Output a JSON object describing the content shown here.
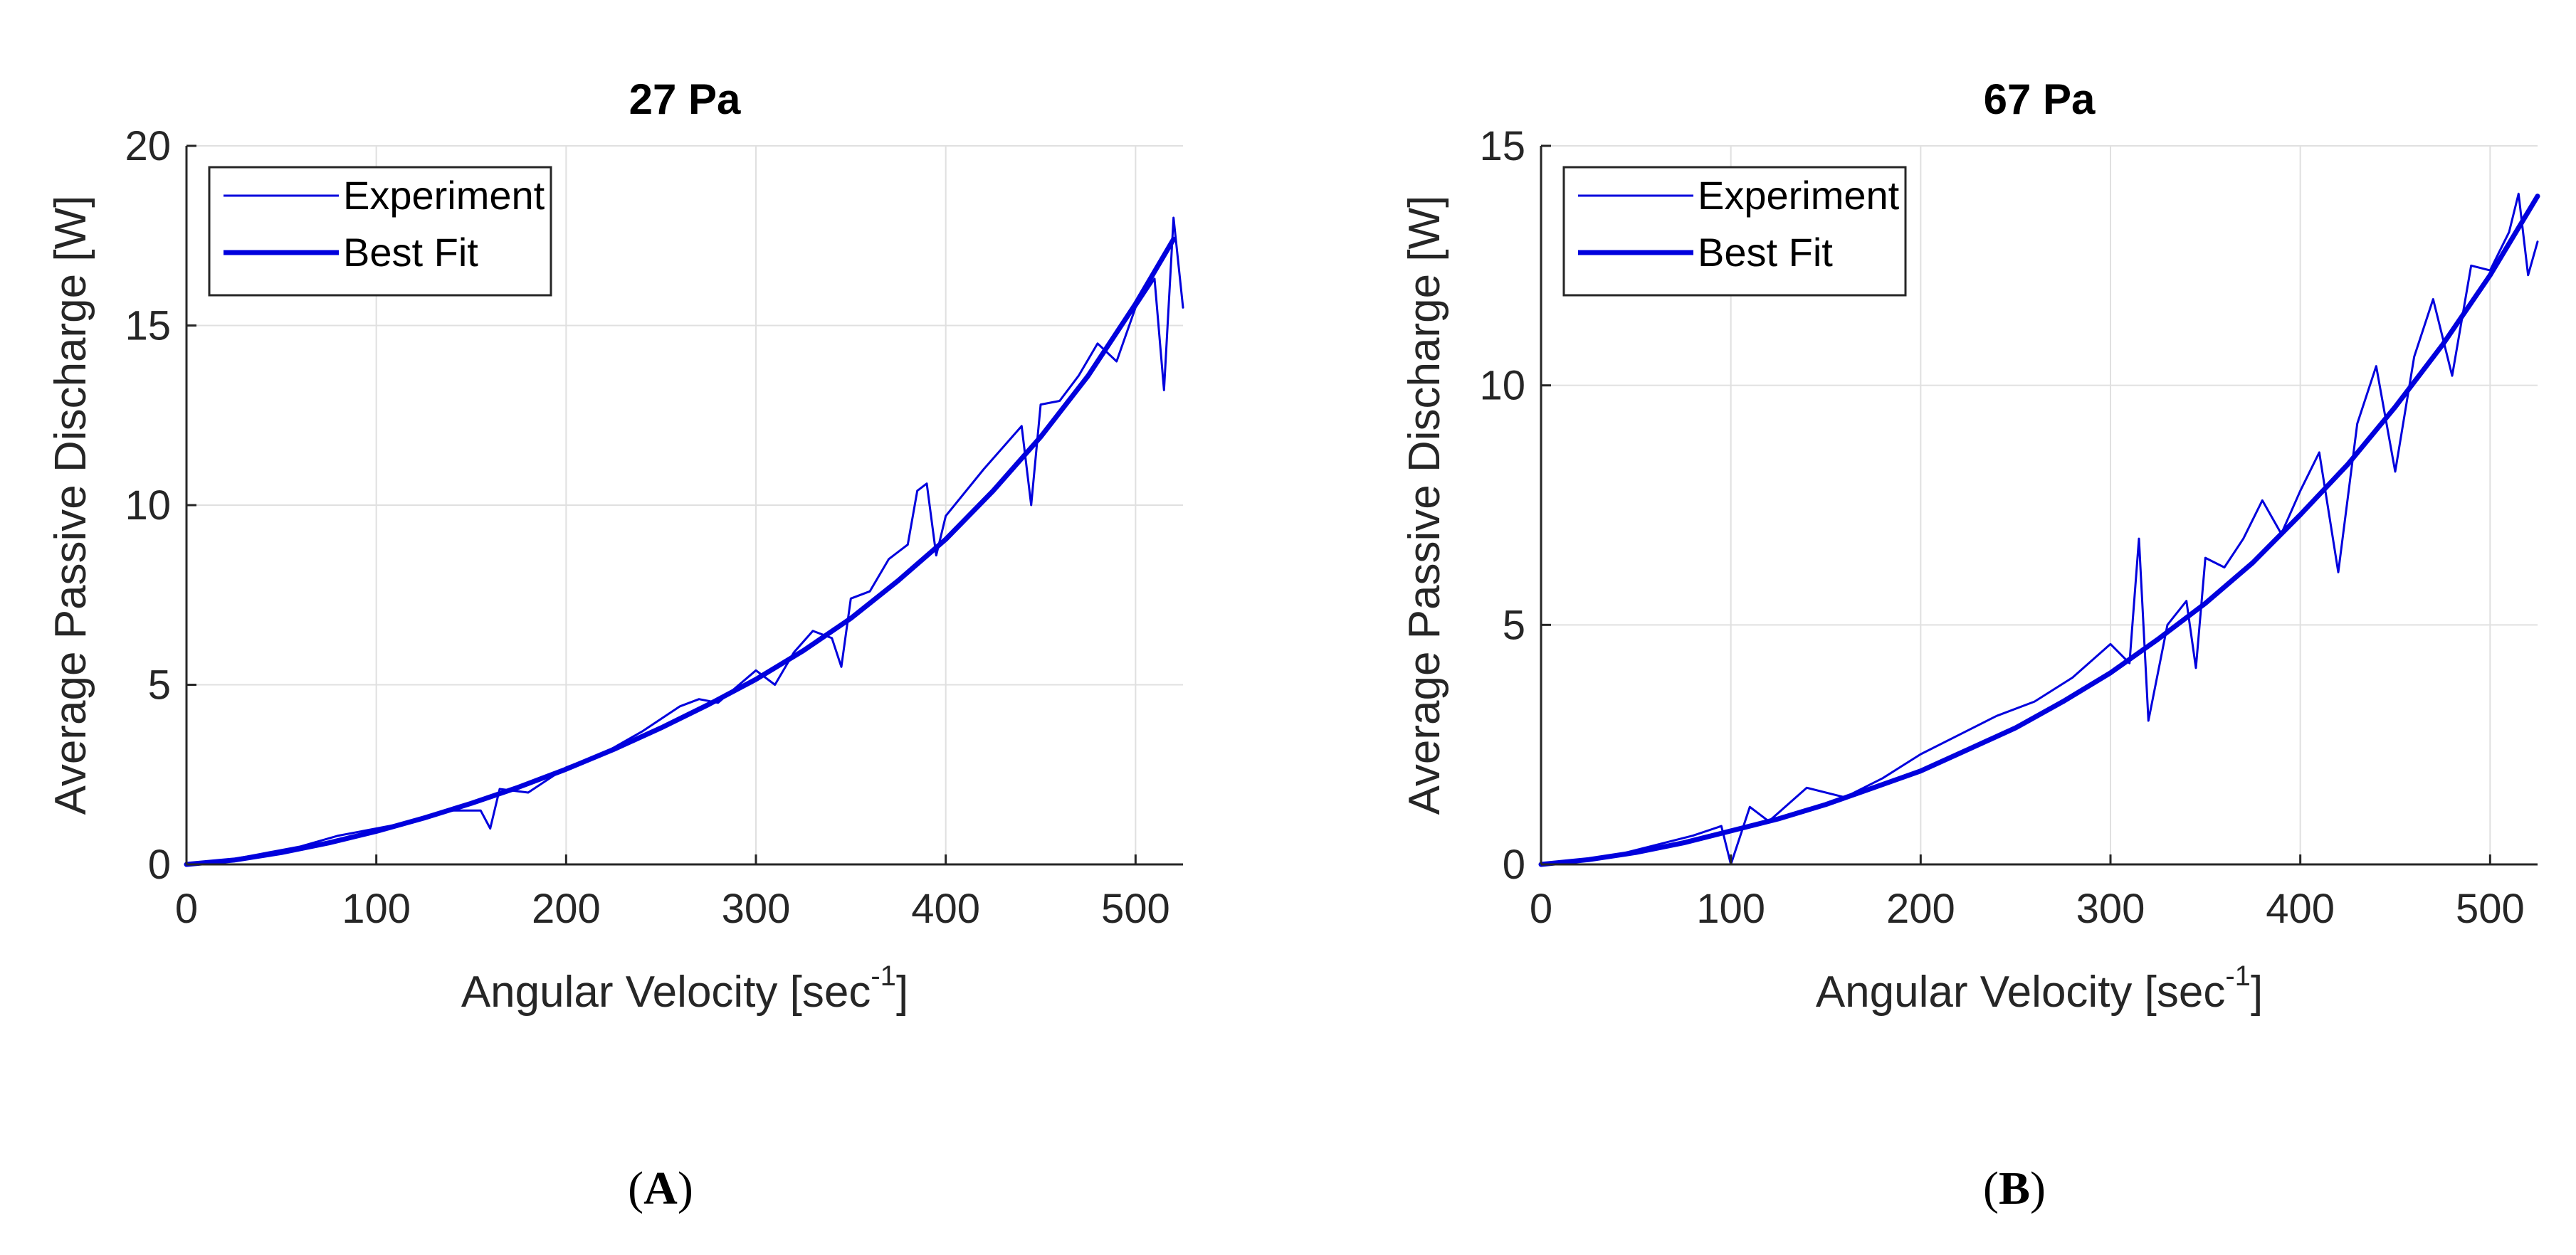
{
  "colors": {
    "line": "#0000DD",
    "axis": "#262626",
    "grid": "#E0E0E0"
  },
  "chart_data": [
    {
      "panel": "A",
      "panel_label": "A",
      "type": "line",
      "title": "27 Pa",
      "xlabel": "Angular Velocity [sec",
      "xlabel_sup": "-1",
      "xlabel_end": "]",
      "ylabel": "Average Passive Discharge [W]",
      "xlim": [
        0,
        525
      ],
      "ylim": [
        0,
        20
      ],
      "xticks": [
        0,
        100,
        200,
        300,
        400,
        500
      ],
      "yticks": [
        0,
        5,
        10,
        15,
        20
      ],
      "grid": true,
      "legend": {
        "location": "top-left",
        "entries": [
          "Experiment",
          "Best Fit"
        ]
      },
      "series": [
        {
          "name": "Experiment",
          "x": [
            0,
            20,
            40,
            60,
            80,
            100,
            120,
            140,
            155,
            160,
            165,
            180,
            200,
            220,
            240,
            260,
            270,
            280,
            300,
            310,
            320,
            330,
            340,
            345,
            350,
            360,
            370,
            380,
            385,
            390,
            395,
            400,
            420,
            440,
            445,
            450,
            460,
            470,
            480,
            490,
            500,
            510,
            515,
            520,
            525
          ],
          "y": [
            0,
            0.1,
            0.3,
            0.5,
            0.8,
            1.0,
            1.2,
            1.5,
            1.5,
            1.0,
            2.1,
            2.0,
            2.7,
            3.1,
            3.7,
            4.4,
            4.6,
            4.5,
            5.4,
            5.0,
            5.9,
            6.5,
            6.3,
            5.5,
            7.4,
            7.6,
            8.5,
            8.9,
            10.4,
            10.6,
            8.6,
            9.7,
            11.0,
            12.2,
            10.0,
            12.8,
            12.9,
            13.6,
            14.5,
            14.0,
            15.5,
            16.3,
            13.2,
            18.0,
            15.5
          ]
        },
        {
          "name": "Best Fit",
          "x": [
            0,
            25,
            50,
            75,
            100,
            125,
            150,
            175,
            200,
            225,
            250,
            275,
            300,
            325,
            350,
            375,
            400,
            425,
            450,
            475,
            500,
            520
          ],
          "y": [
            0,
            0.12,
            0.33,
            0.6,
            0.92,
            1.29,
            1.7,
            2.15,
            2.65,
            3.2,
            3.8,
            4.45,
            5.15,
            5.95,
            6.85,
            7.9,
            9.05,
            10.4,
            11.9,
            13.6,
            15.6,
            17.4
          ]
        }
      ]
    },
    {
      "panel": "B",
      "panel_label": "B",
      "type": "line",
      "title": "67 Pa",
      "xlabel": "Angular Velocity [sec",
      "xlabel_sup": "-1",
      "xlabel_end": "]",
      "ylabel": "Average Passive Discharge [W]",
      "xlim": [
        0,
        525
      ],
      "ylim": [
        0,
        15
      ],
      "xticks": [
        0,
        100,
        200,
        300,
        400,
        500
      ],
      "yticks": [
        0,
        5,
        10,
        15
      ],
      "grid": true,
      "legend": {
        "location": "top-left",
        "entries": [
          "Experiment",
          "Best Fit"
        ]
      },
      "series": [
        {
          "name": "Experiment",
          "x": [
            0,
            20,
            40,
            60,
            80,
            95,
            100,
            110,
            120,
            140,
            160,
            180,
            200,
            220,
            240,
            260,
            280,
            300,
            310,
            315,
            320,
            330,
            340,
            345,
            350,
            360,
            370,
            380,
            390,
            400,
            410,
            420,
            430,
            440,
            450,
            460,
            470,
            480,
            490,
            500,
            510,
            515,
            520,
            525
          ],
          "y": [
            0,
            0.1,
            0.2,
            0.4,
            0.6,
            0.8,
            0.0,
            1.2,
            0.9,
            1.6,
            1.4,
            1.8,
            2.3,
            2.7,
            3.1,
            3.4,
            3.9,
            4.6,
            4.2,
            6.8,
            3.0,
            5.0,
            5.5,
            4.1,
            6.4,
            6.2,
            6.8,
            7.6,
            6.9,
            7.8,
            8.6,
            6.1,
            9.2,
            10.4,
            8.2,
            10.6,
            11.8,
            10.2,
            12.5,
            12.4,
            13.2,
            14.0,
            12.3,
            13.0
          ]
        },
        {
          "name": "Best Fit",
          "x": [
            0,
            25,
            50,
            75,
            100,
            125,
            150,
            175,
            200,
            225,
            250,
            275,
            300,
            325,
            350,
            375,
            400,
            425,
            450,
            475,
            500,
            525
          ],
          "y": [
            0,
            0.1,
            0.25,
            0.45,
            0.7,
            0.95,
            1.25,
            1.6,
            1.95,
            2.4,
            2.85,
            3.4,
            4.0,
            4.7,
            5.45,
            6.3,
            7.3,
            8.35,
            9.55,
            10.85,
            12.3,
            13.95
          ]
        }
      ]
    }
  ]
}
